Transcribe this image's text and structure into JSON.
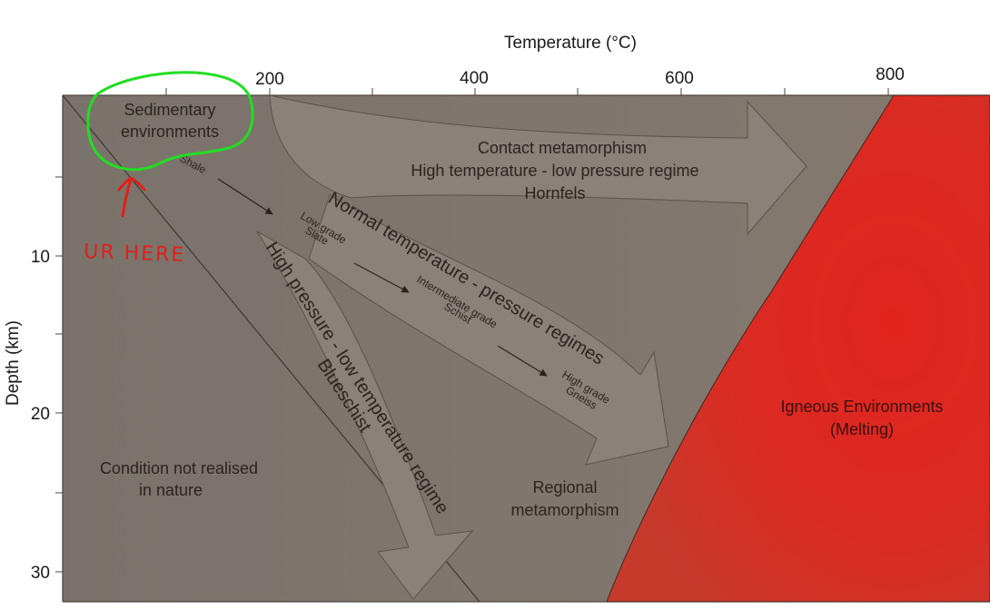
{
  "axes": {
    "x_title": "Temperature (°C)",
    "y_title": "Depth (km)",
    "x_ticks": [
      "200",
      "400",
      "600",
      "800"
    ],
    "y_ticks": [
      "10",
      "20",
      "30"
    ]
  },
  "zones": {
    "sedimentary_line1": "Sedimentary",
    "sedimentary_line2": "environments",
    "contact_line1": "Contact metamorphism",
    "contact_line2": "High temperature - low pressure regime",
    "contact_line3": "Hornfels",
    "normal_regime": "Normal temperature - pressure regimes",
    "high_pressure_line1": "High pressure - low temperature regime",
    "high_pressure_line2": "Blueschist",
    "regional_line1": "Regional",
    "regional_line2": "metamorphism",
    "not_realised_line1": "Condition not realised",
    "not_realised_line2": "in nature",
    "igneous_line1": "Igneous Environments",
    "igneous_line2": "(Melting)"
  },
  "rocks": {
    "shale": "Shale",
    "low_grade_1": "Low grade",
    "low_grade_2": "Slate",
    "intermediate_1": "Intermediate grade",
    "intermediate_2": "Schist",
    "high_grade_1": "High grade",
    "high_grade_2": "Gneiss"
  },
  "annotation": {
    "text": "UR HERE",
    "color": "#e0201a",
    "highlight_color": "#22dd22"
  },
  "colors": {
    "background": "#7d756c",
    "arrow_fill": "#8b8279",
    "igneous": "#e0251f"
  }
}
